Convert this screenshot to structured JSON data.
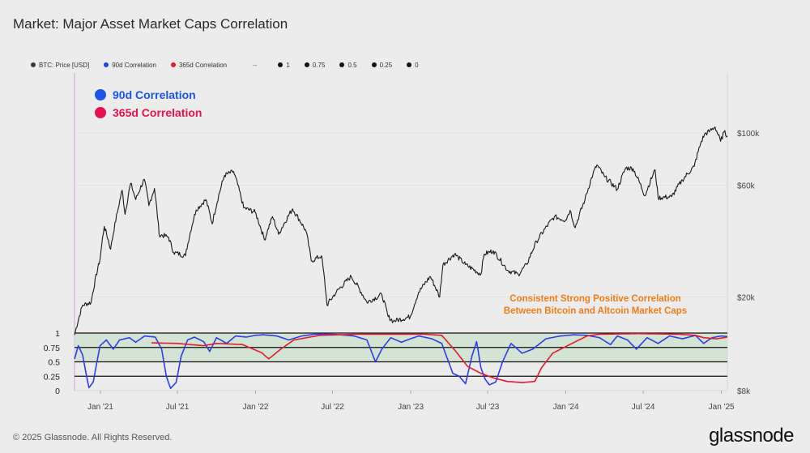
{
  "page": {
    "title": "Market: Major Asset Market Caps Correlation",
    "copyright": "© 2025 Glassnode. All Rights Reserved.",
    "brand": "glassnode"
  },
  "colors": {
    "price": "#1a1a1a",
    "corr90": "#2c3ee6",
    "corr365": "#e31a2a",
    "band": "#d4e4d4",
    "title90": "#1a55e3",
    "title365": "#e3124f",
    "annotation": "#ef7d18"
  },
  "legend": [
    {
      "label": "BTC: Price [USD]",
      "color": "#3a3a3a"
    },
    {
      "label": "90d Correlation",
      "color": "#2c3ee6"
    },
    {
      "label": "365d Correlation",
      "color": "#e31a2a"
    },
    {
      "label": "--",
      "separator": true
    },
    {
      "label": "1",
      "color": "#111111"
    },
    {
      "label": "0.75",
      "color": "#111111"
    },
    {
      "label": "0.5",
      "color": "#111111"
    },
    {
      "label": "0.25",
      "color": "#111111"
    },
    {
      "label": "0",
      "color": "#111111"
    }
  ],
  "chart_data": {
    "type": "line",
    "inset_legend": [
      {
        "label": "90d Correlation",
        "color": "#1a55e3"
      },
      {
        "label": "365d Correlation",
        "color": "#e3124f"
      }
    ],
    "annotation": {
      "lines": [
        "Consistent Strong Positive Correlation",
        "Between Bitcoin and Altcoin Market Caps"
      ]
    },
    "x_range": [
      "2020-11-01",
      "2025-01-15"
    ],
    "x_ticks": [
      {
        "date": "2021-01-01",
        "label": "Jan '21"
      },
      {
        "date": "2021-07-01",
        "label": "Jul '21"
      },
      {
        "date": "2022-01-01",
        "label": "Jan '22"
      },
      {
        "date": "2022-07-01",
        "label": "Jul '22"
      },
      {
        "date": "2023-01-01",
        "label": "Jan '23"
      },
      {
        "date": "2023-07-01",
        "label": "Jul '23"
      },
      {
        "date": "2024-01-01",
        "label": "Jan '24"
      },
      {
        "date": "2024-07-01",
        "label": "Jul '24"
      },
      {
        "date": "2025-01-01",
        "label": "Jan '25"
      }
    ],
    "price_axis": {
      "scale": "log",
      "range": [
        8000,
        180000
      ],
      "ticks": [
        {
          "value": 100000,
          "label": "$100k"
        },
        {
          "value": 60000,
          "label": "$60k"
        },
        {
          "value": 20000,
          "label": "$20k"
        },
        {
          "value": 8000,
          "label": "$8k"
        }
      ]
    },
    "corr_axis": {
      "range": [
        0,
        1
      ],
      "ticks": [
        {
          "value": 1,
          "label": "1"
        },
        {
          "value": 0.75,
          "label": "0.75"
        },
        {
          "value": 0.5,
          "label": "0.5"
        },
        {
          "value": 0.25,
          "label": "0.25"
        },
        {
          "value": 0,
          "label": "0"
        }
      ],
      "reference_lines": [
        1,
        0.75,
        0.5,
        0.25
      ],
      "shaded_band": [
        0.5,
        1
      ]
    },
    "series": [
      {
        "name": "BTC: Price [USD]",
        "axis": "price",
        "points": [
          [
            "2020-11-01",
            13800
          ],
          [
            "2020-11-20",
            18500
          ],
          [
            "2020-12-10",
            19000
          ],
          [
            "2020-12-31",
            29000
          ],
          [
            "2021-01-10",
            40000
          ],
          [
            "2021-01-25",
            32000
          ],
          [
            "2021-02-10",
            46000
          ],
          [
            "2021-02-21",
            57000
          ],
          [
            "2021-02-28",
            45000
          ],
          [
            "2021-03-13",
            61000
          ],
          [
            "2021-03-25",
            52000
          ],
          [
            "2021-04-14",
            63500
          ],
          [
            "2021-04-25",
            49000
          ],
          [
            "2021-05-08",
            58000
          ],
          [
            "2021-05-19",
            37000
          ],
          [
            "2021-06-10",
            36000
          ],
          [
            "2021-06-22",
            31000
          ],
          [
            "2021-07-20",
            30000
          ],
          [
            "2021-08-14",
            47000
          ],
          [
            "2021-09-06",
            52000
          ],
          [
            "2021-09-21",
            41000
          ],
          [
            "2021-10-20",
            66000
          ],
          [
            "2021-11-10",
            68500
          ],
          [
            "2021-12-04",
            48000
          ],
          [
            "2021-12-31",
            46000
          ],
          [
            "2022-01-22",
            35000
          ],
          [
            "2022-02-10",
            44000
          ],
          [
            "2022-02-24",
            37000
          ],
          [
            "2022-03-29",
            47500
          ],
          [
            "2022-04-30",
            38000
          ],
          [
            "2022-05-12",
            28500
          ],
          [
            "2022-06-05",
            30000
          ],
          [
            "2022-06-18",
            18500
          ],
          [
            "2022-07-10",
            21000
          ],
          [
            "2022-08-14",
            24500
          ],
          [
            "2022-09-20",
            19000
          ],
          [
            "2022-10-25",
            20500
          ],
          [
            "2022-11-09",
            16500
          ],
          [
            "2022-11-21",
            15800
          ],
          [
            "2022-12-31",
            16500
          ],
          [
            "2023-01-20",
            21000
          ],
          [
            "2023-02-16",
            24500
          ],
          [
            "2023-03-10",
            20000
          ],
          [
            "2023-03-18",
            27500
          ],
          [
            "2023-04-14",
            30500
          ],
          [
            "2023-05-10",
            27500
          ],
          [
            "2023-06-15",
            25000
          ],
          [
            "2023-06-23",
            30500
          ],
          [
            "2023-07-14",
            31500
          ],
          [
            "2023-08-17",
            26000
          ],
          [
            "2023-09-11",
            25000
          ],
          [
            "2023-10-01",
            27500
          ],
          [
            "2023-10-24",
            34500
          ],
          [
            "2023-12-05",
            44000
          ],
          [
            "2023-12-31",
            42500
          ],
          [
            "2024-01-11",
            46800
          ],
          [
            "2024-01-23",
            39500
          ],
          [
            "2024-02-15",
            52000
          ],
          [
            "2024-03-05",
            67000
          ],
          [
            "2024-03-14",
            73000
          ],
          [
            "2024-04-01",
            65000
          ],
          [
            "2024-05-01",
            57500
          ],
          [
            "2024-05-21",
            71000
          ],
          [
            "2024-06-07",
            70500
          ],
          [
            "2024-07-05",
            54000
          ],
          [
            "2024-07-29",
            69500
          ],
          [
            "2024-08-05",
            53000
          ],
          [
            "2024-09-06",
            53500
          ],
          [
            "2024-10-01",
            63000
          ],
          [
            "2024-10-29",
            72000
          ],
          [
            "2024-11-13",
            90000
          ],
          [
            "2024-11-22",
            98500
          ],
          [
            "2024-12-05",
            102000
          ],
          [
            "2024-12-17",
            106000
          ],
          [
            "2024-12-30",
            92000
          ],
          [
            "2025-01-07",
            101000
          ],
          [
            "2025-01-15",
            97000
          ]
        ]
      },
      {
        "name": "90d Correlation",
        "axis": "corr",
        "points": [
          [
            "2020-11-01",
            0.55
          ],
          [
            "2020-11-10",
            0.78
          ],
          [
            "2020-11-20",
            0.62
          ],
          [
            "2020-11-28",
            0.3
          ],
          [
            "2020-12-05",
            0.05
          ],
          [
            "2020-12-15",
            0.15
          ],
          [
            "2020-12-31",
            0.78
          ],
          [
            "2021-01-15",
            0.88
          ],
          [
            "2021-01-31",
            0.72
          ],
          [
            "2021-02-15",
            0.88
          ],
          [
            "2021-03-10",
            0.92
          ],
          [
            "2021-03-25",
            0.84
          ],
          [
            "2021-04-15",
            0.95
          ],
          [
            "2021-05-10",
            0.93
          ],
          [
            "2021-05-25",
            0.72
          ],
          [
            "2021-06-05",
            0.25
          ],
          [
            "2021-06-15",
            0.04
          ],
          [
            "2021-06-28",
            0.14
          ],
          [
            "2021-07-10",
            0.6
          ],
          [
            "2021-07-25",
            0.88
          ],
          [
            "2021-08-10",
            0.93
          ],
          [
            "2021-09-01",
            0.85
          ],
          [
            "2021-09-15",
            0.68
          ],
          [
            "2021-10-01",
            0.92
          ],
          [
            "2021-10-25",
            0.82
          ],
          [
            "2021-11-15",
            0.95
          ],
          [
            "2021-12-10",
            0.93
          ],
          [
            "2021-12-31",
            0.96
          ],
          [
            "2022-01-20",
            0.97
          ],
          [
            "2022-02-20",
            0.95
          ],
          [
            "2022-03-20",
            0.88
          ],
          [
            "2022-04-20",
            0.95
          ],
          [
            "2022-05-20",
            0.98
          ],
          [
            "2022-06-20",
            0.98
          ],
          [
            "2022-07-20",
            0.97
          ],
          [
            "2022-08-20",
            0.95
          ],
          [
            "2022-09-20",
            0.88
          ],
          [
            "2022-10-10",
            0.5
          ],
          [
            "2022-10-25",
            0.72
          ],
          [
            "2022-11-15",
            0.92
          ],
          [
            "2022-12-10",
            0.84
          ],
          [
            "2022-12-31",
            0.9
          ],
          [
            "2023-01-20",
            0.95
          ],
          [
            "2023-02-20",
            0.9
          ],
          [
            "2023-03-15",
            0.82
          ],
          [
            "2023-04-10",
            0.3
          ],
          [
            "2023-04-25",
            0.25
          ],
          [
            "2023-05-10",
            0.12
          ],
          [
            "2023-05-25",
            0.6
          ],
          [
            "2023-06-05",
            0.85
          ],
          [
            "2023-06-15",
            0.4
          ],
          [
            "2023-06-25",
            0.2
          ],
          [
            "2023-07-05",
            0.1
          ],
          [
            "2023-07-20",
            0.15
          ],
          [
            "2023-08-05",
            0.5
          ],
          [
            "2023-08-25",
            0.82
          ],
          [
            "2023-09-20",
            0.65
          ],
          [
            "2023-10-15",
            0.72
          ],
          [
            "2023-11-15",
            0.9
          ],
          [
            "2023-12-20",
            0.95
          ],
          [
            "2024-01-20",
            0.97
          ],
          [
            "2024-02-20",
            0.96
          ],
          [
            "2024-03-20",
            0.92
          ],
          [
            "2024-04-15",
            0.8
          ],
          [
            "2024-05-01",
            0.95
          ],
          [
            "2024-05-25",
            0.88
          ],
          [
            "2024-06-15",
            0.72
          ],
          [
            "2024-07-10",
            0.92
          ],
          [
            "2024-08-05",
            0.82
          ],
          [
            "2024-09-01",
            0.95
          ],
          [
            "2024-10-01",
            0.9
          ],
          [
            "2024-11-01",
            0.96
          ],
          [
            "2024-11-20",
            0.82
          ],
          [
            "2024-12-10",
            0.92
          ],
          [
            "2024-12-31",
            0.95
          ],
          [
            "2025-01-15",
            0.94
          ]
        ]
      },
      {
        "name": "365d Correlation",
        "axis": "corr",
        "points": [
          [
            "2021-05-01",
            0.83
          ],
          [
            "2021-07-01",
            0.82
          ],
          [
            "2021-09-01",
            0.78
          ],
          [
            "2021-10-01",
            0.82
          ],
          [
            "2021-12-01",
            0.8
          ],
          [
            "2022-01-15",
            0.66
          ],
          [
            "2022-02-01",
            0.55
          ],
          [
            "2022-03-01",
            0.72
          ],
          [
            "2022-04-01",
            0.88
          ],
          [
            "2022-06-01",
            0.96
          ],
          [
            "2022-09-01",
            0.98
          ],
          [
            "2022-12-01",
            0.98
          ],
          [
            "2023-02-01",
            0.98
          ],
          [
            "2023-03-15",
            0.96
          ],
          [
            "2023-04-15",
            0.7
          ],
          [
            "2023-05-15",
            0.42
          ],
          [
            "2023-06-15",
            0.3
          ],
          [
            "2023-07-15",
            0.22
          ],
          [
            "2023-08-15",
            0.16
          ],
          [
            "2023-09-20",
            0.14
          ],
          [
            "2023-10-20",
            0.16
          ],
          [
            "2023-11-05",
            0.4
          ],
          [
            "2023-12-01",
            0.65
          ],
          [
            "2024-01-10",
            0.8
          ],
          [
            "2024-02-20",
            0.95
          ],
          [
            "2024-03-20",
            0.98
          ],
          [
            "2024-06-20",
            0.99
          ],
          [
            "2024-09-20",
            0.98
          ],
          [
            "2024-11-01",
            0.96
          ],
          [
            "2024-11-20",
            0.92
          ],
          [
            "2024-12-20",
            0.9
          ],
          [
            "2025-01-15",
            0.93
          ]
        ]
      }
    ]
  }
}
